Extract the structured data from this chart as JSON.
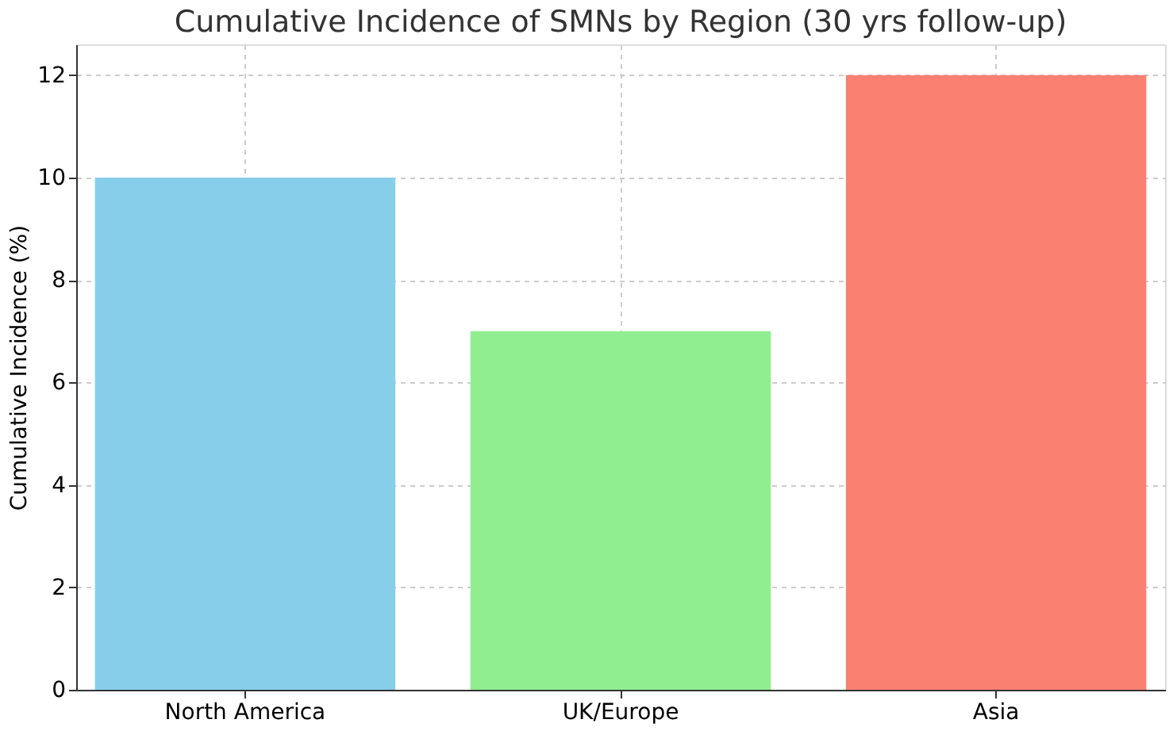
{
  "chart_data": {
    "type": "bar",
    "title": "Cumulative Incidence of SMNs by Region (30 yrs follow-up)",
    "ylabel": "Cumulative Incidence (%)",
    "categories": [
      "North America",
      "UK/Europe",
      "Asia"
    ],
    "values": [
      10,
      7,
      12
    ],
    "colors": [
      "#87ceeb",
      "#90ee90",
      "#fa8072"
    ],
    "ylim": [
      0,
      12.6
    ],
    "yticks": [
      0,
      2,
      4,
      6,
      8,
      10,
      12
    ],
    "grid": true
  }
}
